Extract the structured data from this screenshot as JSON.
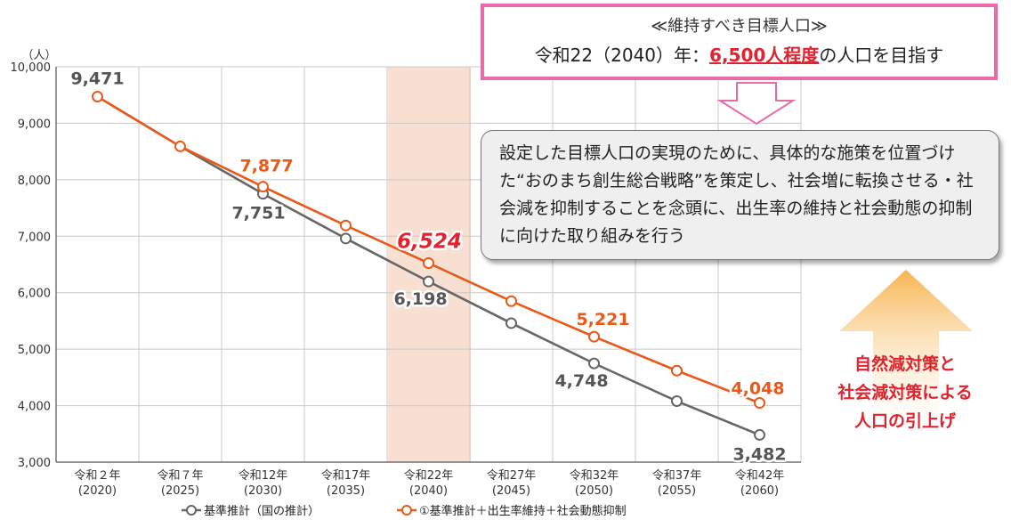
{
  "chart_data": {
    "type": "line",
    "unit_label": "（人）",
    "categories": [
      {
        "era": "令和２年",
        "year": "(2020)"
      },
      {
        "era": "令和７年",
        "year": "(2025)"
      },
      {
        "era": "令和12年",
        "year": "(2030)"
      },
      {
        "era": "令和17年",
        "year": "(2035)"
      },
      {
        "era": "令和22年",
        "year": "(2040)"
      },
      {
        "era": "令和27年",
        "year": "(2045)"
      },
      {
        "era": "令和32年",
        "year": "(2050)"
      },
      {
        "era": "令和37年",
        "year": "(2055)"
      },
      {
        "era": "令和42年",
        "year": "(2060)"
      }
    ],
    "y_ticks": [
      "3,000",
      "4,000",
      "5,000",
      "6,000",
      "7,000",
      "8,000",
      "9,000",
      "10,000"
    ],
    "ylim": [
      3000,
      10000
    ],
    "grid": true,
    "highlight_category": "令和22年",
    "series": [
      {
        "name": "基準推計（国の推計）",
        "color": "#666666",
        "values": [
          9471,
          8590,
          7751,
          6960,
          6198,
          5460,
          4748,
          4080,
          3482
        ],
        "labels": [
          "9,471",
          "",
          "7,751",
          "",
          "6,198",
          "",
          "4,748",
          "",
          "3,482"
        ],
        "label_color": "#555555"
      },
      {
        "name": "①基準推計＋出生率維持＋社会動態抑制",
        "color": "#e8591a",
        "values": [
          9471,
          8590,
          7877,
          7190,
          6524,
          5850,
          5221,
          4620,
          4048
        ],
        "labels": [
          "",
          "",
          "7,877",
          "",
          "6,524",
          "",
          "5,221",
          "",
          "4,048"
        ],
        "label_color": "#e8591a",
        "emphasis_label_color": "#e0232f"
      }
    ],
    "legend_placement": "bottom"
  },
  "target_box": {
    "title": "≪維持すべき目標人口≫",
    "prefix": "令和22（2040）年：",
    "value": "6,500人程度",
    "suffix": "の人口を目指す"
  },
  "strategy_text": "設定した目標人口の実現のために、具体的な施策を位置づけた“おのまち創生総合戦略”を策定し、社会増に転換させる・社会減を抑制することを念頭に、出生率の維持と社会動態の抑制に向けた取り組みを行う",
  "effect_text": [
    "自然減対策と",
    "社会減対策による",
    "人口の引上げ"
  ],
  "colors": {
    "accent_pink": "#e86ba7",
    "emphasis_red": "#e0232f",
    "highlight_band": "#f7dfd2"
  }
}
